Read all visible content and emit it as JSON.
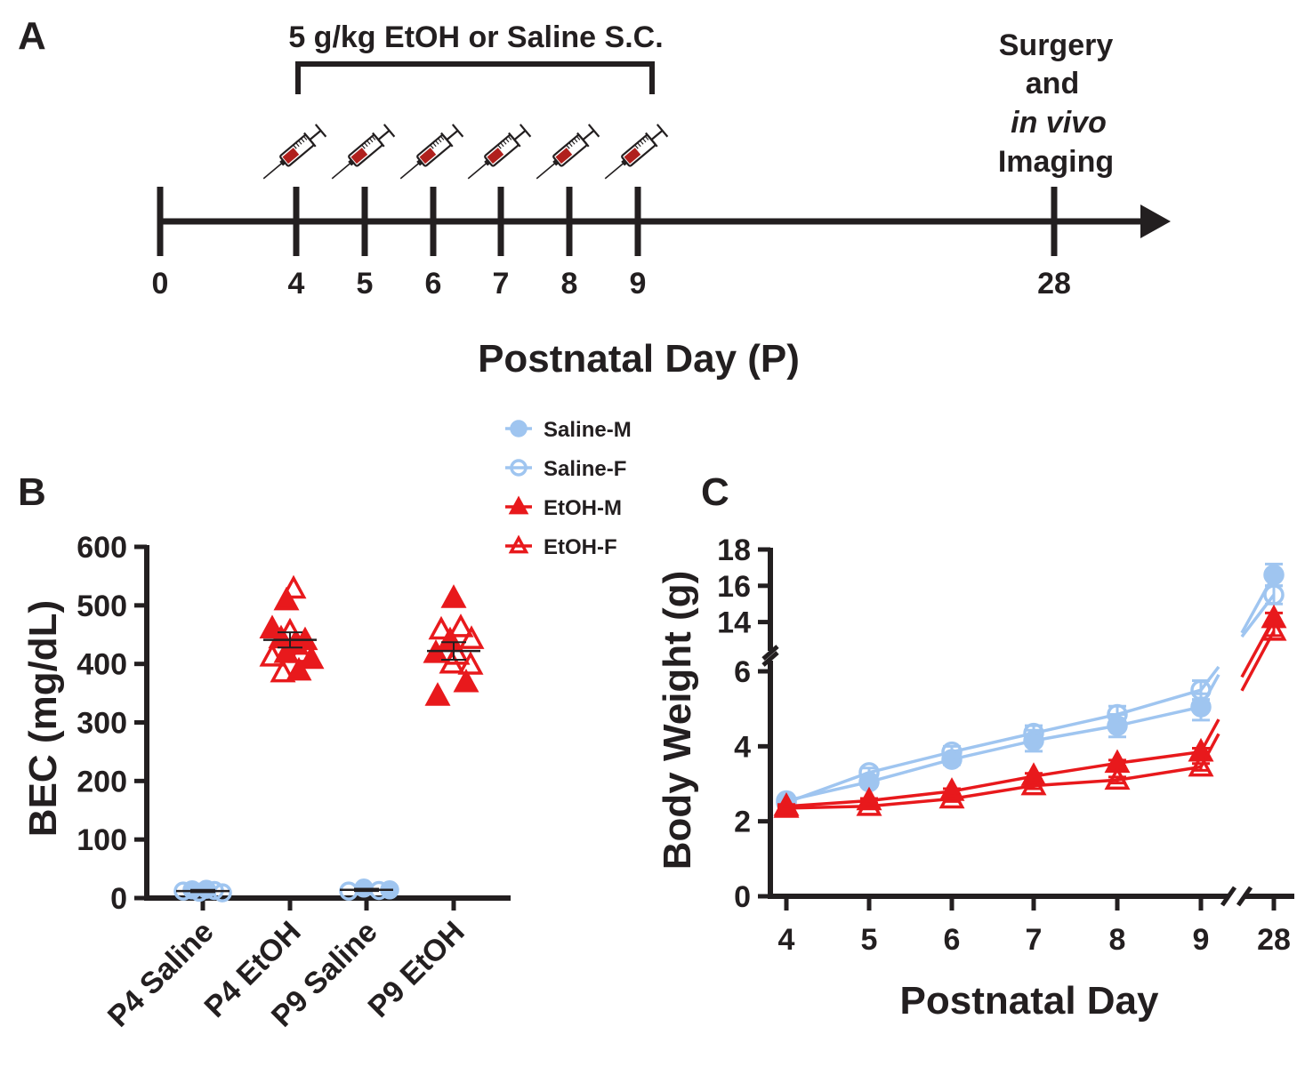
{
  "colors": {
    "saline": "#9fc5f0",
    "ethanol": "#e8191c",
    "ink": "#231f20",
    "syringe_fluid": "#b0201d"
  },
  "icons": {
    "injection": "syringe-icon",
    "arrow": "arrow-head-icon"
  },
  "panels": {
    "a": "A",
    "b": "B",
    "c": "C"
  },
  "timeline": {
    "days": [
      "0",
      "4",
      "5",
      "6",
      "7",
      "8",
      "9",
      "28"
    ],
    "injection_days": [
      "4",
      "5",
      "6",
      "7",
      "8",
      "9"
    ],
    "treatment_label": "5 g/kg EtOH or Saline S.C.",
    "endpoint_label": [
      "Surgery",
      "and",
      "in vivo",
      "Imaging"
    ],
    "axis_title": "Postnatal Day (P)"
  },
  "legend": [
    {
      "label": "Saline-M",
      "marker": "circle",
      "fill": "filled",
      "color": "saline"
    },
    {
      "label": "Saline-F",
      "marker": "circle",
      "fill": "open",
      "color": "saline"
    },
    {
      "label": "EtOH-M",
      "marker": "triangle",
      "fill": "filled",
      "color": "ethanol"
    },
    {
      "label": "EtOH-F",
      "marker": "triangle",
      "fill": "open",
      "color": "ethanol"
    }
  ],
  "chart_data": [
    {
      "id": "B",
      "type": "scatter",
      "title": "",
      "ylabel": "BEC (mg/dL)",
      "ylim": [
        0,
        600
      ],
      "yticks": [
        0,
        100,
        200,
        300,
        400,
        500,
        600
      ],
      "categories": [
        "P4 Saline",
        "P4 EtOH",
        "P9 Saline",
        "P9 EtOH"
      ],
      "groups": [
        {
          "category": "P4 Saline",
          "color": "saline",
          "mean": 12,
          "sem": 2,
          "points": [
            {
              "offset": -0.22,
              "y": 12,
              "marker": "circle",
              "fill": "open"
            },
            {
              "offset": -0.12,
              "y": 14,
              "marker": "circle",
              "fill": "filled"
            },
            {
              "offset": -0.04,
              "y": 10,
              "marker": "circle",
              "fill": "open"
            },
            {
              "offset": 0.04,
              "y": 15,
              "marker": "circle",
              "fill": "filled"
            },
            {
              "offset": 0.13,
              "y": 13,
              "marker": "circle",
              "fill": "open"
            },
            {
              "offset": 0.22,
              "y": 9,
              "marker": "circle",
              "fill": "open"
            }
          ]
        },
        {
          "category": "P4 EtOH",
          "color": "ethanol",
          "mean": 441,
          "sem": 13,
          "points": [
            {
              "offset": 0.04,
              "y": 528,
              "marker": "triangle",
              "fill": "open"
            },
            {
              "offset": -0.04,
              "y": 508,
              "marker": "triangle",
              "fill": "filled"
            },
            {
              "offset": -0.2,
              "y": 460,
              "marker": "triangle",
              "fill": "filled"
            },
            {
              "offset": 0.0,
              "y": 455,
              "marker": "triangle",
              "fill": "open"
            },
            {
              "offset": -0.1,
              "y": 443,
              "marker": "triangle",
              "fill": "filled"
            },
            {
              "offset": 0.17,
              "y": 440,
              "marker": "triangle",
              "fill": "filled"
            },
            {
              "offset": 0.05,
              "y": 432,
              "marker": "triangle",
              "fill": "filled"
            },
            {
              "offset": -0.2,
              "y": 412,
              "marker": "triangle",
              "fill": "open"
            },
            {
              "offset": -0.04,
              "y": 418,
              "marker": "triangle",
              "fill": "filled"
            },
            {
              "offset": 0.12,
              "y": 418,
              "marker": "triangle",
              "fill": "open"
            },
            {
              "offset": 0.24,
              "y": 408,
              "marker": "triangle",
              "fill": "filled"
            },
            {
              "offset": -0.08,
              "y": 385,
              "marker": "triangle",
              "fill": "open"
            },
            {
              "offset": 0.1,
              "y": 388,
              "marker": "triangle",
              "fill": "filled"
            }
          ]
        },
        {
          "category": "P9 Saline",
          "color": "saline",
          "mean": 14,
          "sem": 2,
          "points": [
            {
              "offset": -0.2,
              "y": 12,
              "marker": "circle",
              "fill": "open"
            },
            {
              "offset": -0.03,
              "y": 17,
              "marker": "circle",
              "fill": "filled"
            },
            {
              "offset": 0.14,
              "y": 13,
              "marker": "circle",
              "fill": "open"
            },
            {
              "offset": 0.26,
              "y": 14,
              "marker": "circle",
              "fill": "filled"
            }
          ]
        },
        {
          "category": "P9 EtOH",
          "color": "ethanol",
          "mean": 422,
          "sem": 15,
          "points": [
            {
              "offset": 0.0,
              "y": 512,
              "marker": "triangle",
              "fill": "filled"
            },
            {
              "offset": -0.14,
              "y": 458,
              "marker": "triangle",
              "fill": "open"
            },
            {
              "offset": 0.08,
              "y": 462,
              "marker": "triangle",
              "fill": "open"
            },
            {
              "offset": -0.04,
              "y": 440,
              "marker": "triangle",
              "fill": "filled"
            },
            {
              "offset": 0.2,
              "y": 442,
              "marker": "triangle",
              "fill": "open"
            },
            {
              "offset": -0.2,
              "y": 418,
              "marker": "triangle",
              "fill": "filled"
            },
            {
              "offset": 0.04,
              "y": 415,
              "marker": "triangle",
              "fill": "open"
            },
            {
              "offset": -0.02,
              "y": 400,
              "marker": "triangle",
              "fill": "open"
            },
            {
              "offset": 0.19,
              "y": 398,
              "marker": "triangle",
              "fill": "open"
            },
            {
              "offset": 0.14,
              "y": 368,
              "marker": "triangle",
              "fill": "filled"
            },
            {
              "offset": -0.18,
              "y": 345,
              "marker": "triangle",
              "fill": "filled"
            }
          ]
        }
      ]
    },
    {
      "id": "C",
      "type": "line",
      "title": "",
      "xlabel": "Postnatal Day",
      "ylabel": "Body Weight (g)",
      "x": [
        4,
        5,
        6,
        7,
        8,
        9,
        28
      ],
      "x_tick_labels": [
        "4",
        "5",
        "6",
        "7",
        "8",
        "9",
        "28"
      ],
      "y_axis_segments": [
        {
          "range": [
            0,
            6
          ],
          "ticks": [
            0,
            2,
            4,
            6
          ]
        },
        {
          "range": [
            13,
            18
          ],
          "ticks": [
            14,
            16,
            18
          ]
        }
      ],
      "series": [
        {
          "name": "Saline-M",
          "color": "saline",
          "marker": "circle",
          "fill": "filled",
          "values": [
            2.55,
            3.05,
            3.65,
            4.15,
            4.55,
            5.05,
            16.6
          ],
          "err": [
            0.1,
            0.12,
            0.14,
            0.28,
            0.3,
            0.35,
            0.6
          ]
        },
        {
          "name": "Saline-F",
          "color": "saline",
          "marker": "circle",
          "fill": "open",
          "values": [
            2.5,
            3.3,
            3.85,
            4.35,
            4.85,
            5.5,
            15.5
          ],
          "err": [
            0.1,
            0.12,
            0.15,
            0.2,
            0.22,
            0.25,
            0.5
          ]
        },
        {
          "name": "EtOH-M",
          "color": "ethanol",
          "marker": "triangle",
          "fill": "filled",
          "values": [
            2.4,
            2.55,
            2.8,
            3.2,
            3.55,
            3.85,
            14.2
          ],
          "err": [
            0.05,
            0.06,
            0.07,
            0.08,
            0.08,
            0.1,
            0.3
          ]
        },
        {
          "name": "EtOH-F",
          "color": "ethanol",
          "marker": "triangle",
          "fill": "open",
          "values": [
            2.35,
            2.4,
            2.6,
            2.95,
            3.1,
            3.45,
            13.5
          ],
          "err": [
            0.05,
            0.06,
            0.07,
            0.08,
            0.08,
            0.09,
            0.25
          ]
        }
      ]
    }
  ]
}
